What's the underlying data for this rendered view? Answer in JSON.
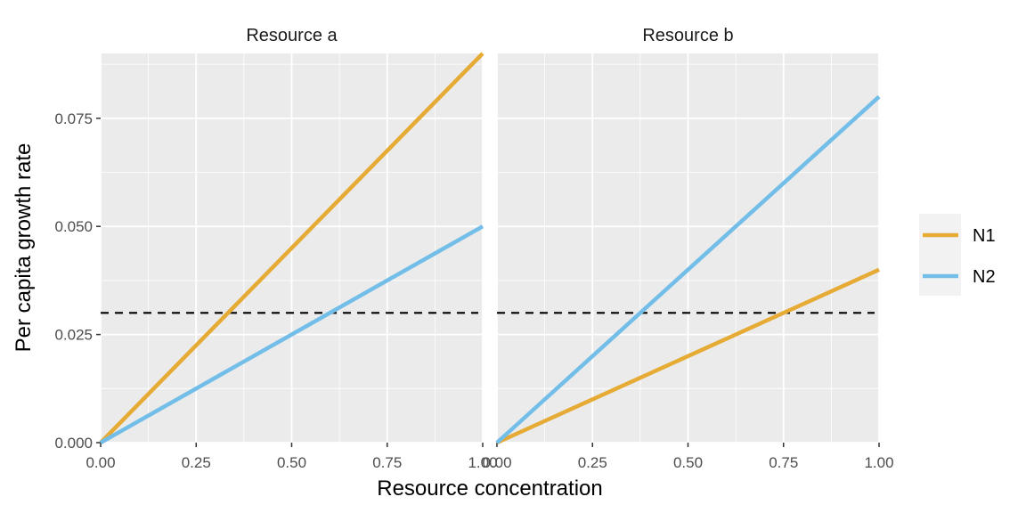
{
  "chart_data": {
    "type": "line",
    "xlabel": "Resource concentration",
    "ylabel": "Per capita growth rate",
    "xlim": [
      0,
      1
    ],
    "ylim": [
      0,
      0.09
    ],
    "xticks": [
      "0.00",
      "0.25",
      "0.50",
      "0.75",
      "1.00"
    ],
    "xtick_values": [
      0,
      0.25,
      0.5,
      0.75,
      1
    ],
    "yticks": [
      "0.000",
      "0.025",
      "0.050",
      "0.075"
    ],
    "ytick_values": [
      0,
      0.025,
      0.05,
      0.075
    ],
    "grid": true,
    "legend_position": "right",
    "threshold": {
      "y": 0.03,
      "style": "dashed",
      "color": "#000000"
    },
    "series_meta": [
      {
        "name": "N1",
        "color": "#E6AB35"
      },
      {
        "name": "N2",
        "color": "#72BEE8"
      }
    ],
    "panels": [
      {
        "title": "Resource a",
        "series": [
          {
            "name": "N1",
            "x": [
              0,
              1
            ],
            "y": [
              0,
              0.09
            ]
          },
          {
            "name": "N2",
            "x": [
              0,
              1
            ],
            "y": [
              0,
              0.05
            ]
          }
        ]
      },
      {
        "title": "Resource b",
        "series": [
          {
            "name": "N1",
            "x": [
              0,
              1
            ],
            "y": [
              0,
              0.04
            ]
          },
          {
            "name": "N2",
            "x": [
              0,
              1
            ],
            "y": [
              0,
              0.08
            ]
          }
        ]
      }
    ]
  }
}
